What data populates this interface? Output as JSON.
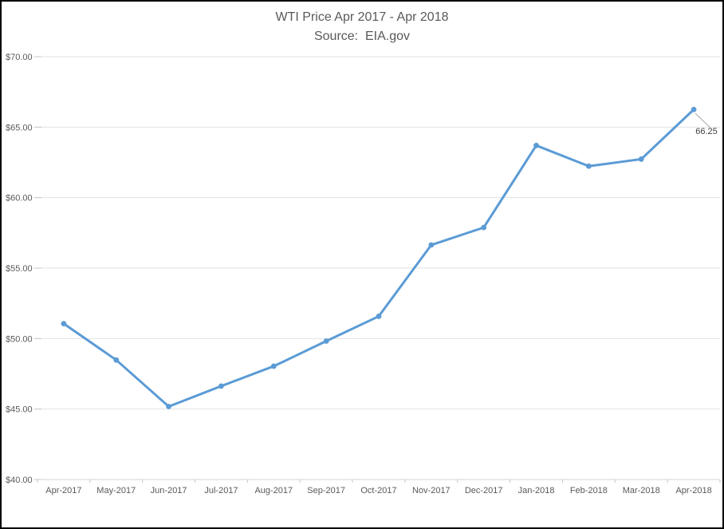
{
  "chart_data": {
    "type": "line",
    "title": "WTI Price Apr 2017 - Apr 2018",
    "subtitle": "Source:  EIA.gov",
    "categories": [
      "Apr-2017",
      "May-2017",
      "Jun-2017",
      "Jul-2017",
      "Aug-2017",
      "Sep-2017",
      "Oct-2017",
      "Nov-2017",
      "Dec-2017",
      "Jan-2018",
      "Feb-2018",
      "Mar-2018",
      "Apr-2018"
    ],
    "values": [
      51.06,
      48.48,
      45.18,
      46.63,
      48.04,
      49.82,
      51.58,
      56.64,
      57.88,
      63.7,
      62.23,
      62.73,
      66.25
    ],
    "ylim": [
      40,
      70
    ],
    "y_major_unit": 5,
    "y_tick_labels": [
      "$40.00",
      "$45.00",
      "$50.00",
      "$55.00",
      "$60.00",
      "$65.00",
      "$70.00"
    ],
    "xlabel": "",
    "ylabel": "",
    "grid": true,
    "legend": "none",
    "annotation": {
      "text": "66.25",
      "category": "Apr-2018",
      "value": 66.25
    },
    "colors": {
      "line": "#5B9BD5",
      "grid": "#E2E2E2",
      "axis": "#D6D6D6",
      "tick": "#C6C6C6",
      "label": "#595959",
      "title": "#595959",
      "annotation_text": "#404040",
      "leader": "#A6A6A6",
      "frame_border": "#000000"
    }
  }
}
